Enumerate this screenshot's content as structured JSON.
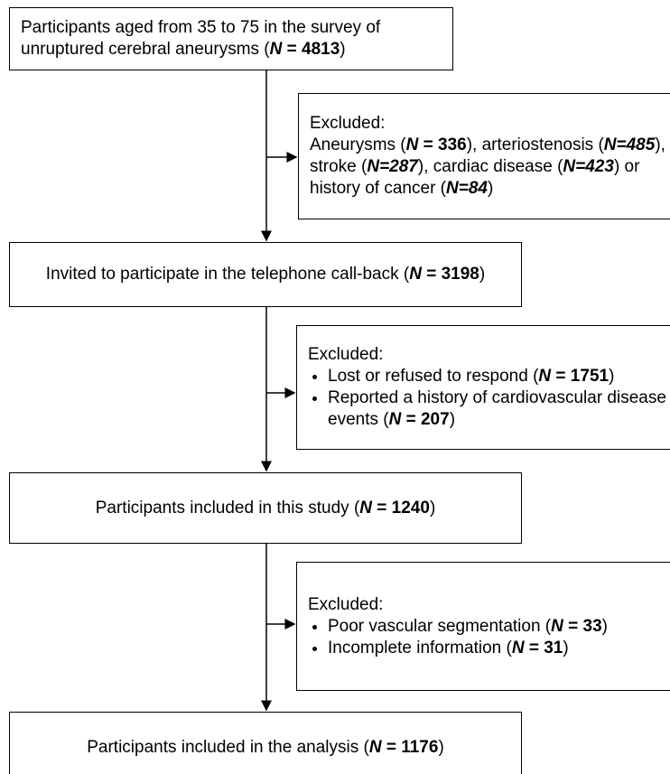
{
  "boxes": [
    {
      "segments": [
        {
          "t": "Participants aged from 35 to 75 in the survey of unruptured cerebral aneurysms ("
        },
        {
          "t": "N",
          "s": "bi"
        },
        {
          "t": " = 4813",
          "s": "b"
        },
        {
          "t": ")"
        }
      ]
    },
    {
      "segments": [
        {
          "t": "Invited to participate in the telephone call-back ("
        },
        {
          "t": "N",
          "s": "bi"
        },
        {
          "t": " = 3198",
          "s": "b"
        },
        {
          "t": ")"
        }
      ]
    },
    {
      "segments": [
        {
          "t": "Participants included in this study ("
        },
        {
          "t": "N",
          "s": "bi"
        },
        {
          "t": " = 1240",
          "s": "b"
        },
        {
          "t": ")"
        }
      ]
    },
    {
      "segments": [
        {
          "t": "Participants included in the analysis ("
        },
        {
          "t": "N",
          "s": "bi"
        },
        {
          "t": " = 1176",
          "s": "b"
        },
        {
          "t": ")"
        }
      ]
    }
  ],
  "exclusions": [
    {
      "heading": "Excluded:",
      "segments": [
        {
          "t": "Aneurysms ("
        },
        {
          "t": "N",
          "s": "bi"
        },
        {
          "t": " = 336",
          "s": "b"
        },
        {
          "t": "), arteriostenosis ("
        },
        {
          "t": "N=485",
          "s": "bi"
        },
        {
          "t": "), stroke ("
        },
        {
          "t": "N=287",
          "s": "bi"
        },
        {
          "t": "), cardiac disease ("
        },
        {
          "t": "N=423",
          "s": "bi"
        },
        {
          "t": ") or history of cancer ("
        },
        {
          "t": "N=84",
          "s": "bi"
        },
        {
          "t": ")"
        }
      ]
    },
    {
      "heading": "Excluded:",
      "items": [
        [
          {
            "t": "Lost or refused to respond ("
          },
          {
            "t": "N",
            "s": "bi"
          },
          {
            "t": " = 1751",
            "s": "b"
          },
          {
            "t": ")"
          }
        ],
        [
          {
            "t": "Reported a history of cardiovascular disease events ("
          },
          {
            "t": "N",
            "s": "bi"
          },
          {
            "t": " = 207",
            "s": "b"
          },
          {
            "t": ")"
          }
        ]
      ]
    },
    {
      "heading": "Excluded:",
      "items": [
        [
          {
            "t": "Poor vascular segmentation ("
          },
          {
            "t": "N",
            "s": "bi"
          },
          {
            "t": " = 33",
            "s": "b"
          },
          {
            "t": ")"
          }
        ],
        [
          {
            "t": "Incomplete information ("
          },
          {
            "t": "N",
            "s": "bi"
          },
          {
            "t": " = 31",
            "s": "b"
          },
          {
            "t": ")"
          }
        ]
      ]
    }
  ]
}
